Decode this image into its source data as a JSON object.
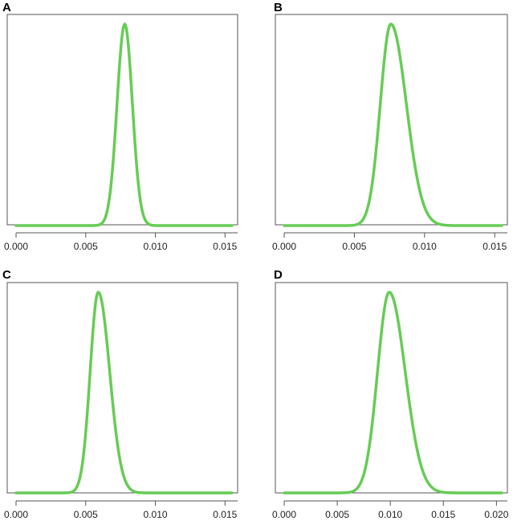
{
  "colors": {
    "curve": "#66cc55",
    "frame": "#555555",
    "axis": "#555555"
  },
  "chart_data": [
    {
      "panel": "A",
      "type": "line",
      "xlim": [
        0,
        0.0155
      ],
      "xticks": [
        "0.000",
        "0.005",
        "0.010",
        "0.015"
      ],
      "xtick_values": [
        0,
        0.005,
        0.01,
        0.015
      ],
      "curve": {
        "shape": "normal",
        "mean": 0.0078,
        "sd": 0.00055
      },
      "series": [
        {
          "x": [
            0,
            0.006,
            0.0068,
            0.0073,
            0.0078,
            0.0083,
            0.0088,
            0.0096,
            0.0155
          ],
          "y": [
            0,
            0.03,
            0.2,
            0.66,
            1,
            0.66,
            0.2,
            0.03,
            0
          ]
        }
      ]
    },
    {
      "panel": "B",
      "type": "line",
      "xlim": [
        0,
        0.0155
      ],
      "xticks": [
        "0.000",
        "0.005",
        "0.010",
        "0.015"
      ],
      "xtick_values": [
        0,
        0.005,
        0.01,
        0.015
      ],
      "curve": {
        "shape": "skew",
        "mode": 0.0076,
        "sd_left": 0.00075,
        "sd_right": 0.0011
      },
      "series": [
        {
          "x": [
            0,
            0.0053,
            0.0063,
            0.0069,
            0.0076,
            0.0087,
            0.0098,
            0.0113,
            0.0155
          ],
          "y": [
            0,
            0.03,
            0.2,
            0.66,
            1,
            0.66,
            0.2,
            0.03,
            0
          ]
        }
      ]
    },
    {
      "panel": "C",
      "type": "line",
      "xlim": [
        0,
        0.0155
      ],
      "xticks": [
        "0.000",
        "0.005",
        "0.010",
        "0.015"
      ],
      "xtick_values": [
        0,
        0.005,
        0.01,
        0.015
      ],
      "curve": {
        "shape": "skew",
        "mode": 0.0059,
        "sd_left": 0.00058,
        "sd_right": 0.00082
      },
      "series": [
        {
          "x": [
            0,
            0.0042,
            0.005,
            0.0053,
            0.0059,
            0.0067,
            0.0075,
            0.0085,
            0.0155
          ],
          "y": [
            0,
            0.03,
            0.2,
            0.66,
            1,
            0.66,
            0.2,
            0.03,
            0
          ]
        }
      ]
    },
    {
      "panel": "D",
      "type": "line",
      "xlim": [
        0,
        0.0205
      ],
      "xticks": [
        "0.000",
        "0.005",
        "0.010",
        "0.015",
        "0.020"
      ],
      "xtick_values": [
        0,
        0.005,
        0.01,
        0.015,
        0.02
      ],
      "curve": {
        "shape": "skew",
        "mode": 0.0099,
        "sd_left": 0.0011,
        "sd_right": 0.0015
      },
      "series": [
        {
          "x": [
            0,
            0.0071,
            0.0085,
            0.0088,
            0.0099,
            0.0114,
            0.0129,
            0.0151,
            0.0205
          ],
          "y": [
            0,
            0.03,
            0.2,
            0.66,
            1,
            0.66,
            0.2,
            0.03,
            0
          ]
        }
      ]
    }
  ]
}
